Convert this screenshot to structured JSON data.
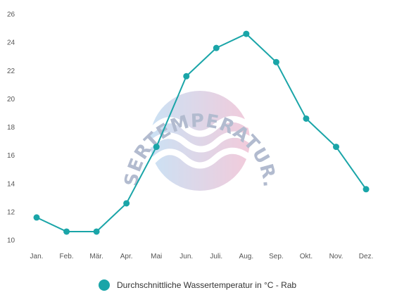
{
  "chart_data": {
    "type": "line",
    "categories": [
      "Jan.",
      "Feb.",
      "Mär.",
      "Apr.",
      "Mai",
      "Jun.",
      "Juli.",
      "Aug.",
      "Sep.",
      "Okt.",
      "Nov.",
      "Dez."
    ],
    "series": [
      {
        "name": "Durchschnittliche Wassertemperatur in °C - Rab",
        "values": [
          11.6,
          10.6,
          10.6,
          12.6,
          16.6,
          21.6,
          23.6,
          24.6,
          22.6,
          18.6,
          16.6,
          13.6
        ]
      }
    ],
    "y_ticks": [
      10,
      12,
      14,
      16,
      18,
      20,
      22,
      24,
      26
    ],
    "ylim": [
      10,
      26
    ],
    "title": "",
    "xlabel": "",
    "ylabel": "",
    "grid": false,
    "legend_position": "bottom",
    "colors": {
      "line": "#1aa5a8",
      "point": "#1aa5a8"
    }
  },
  "watermark": {
    "text": "WASSERTEMPERATUR.ORG"
  }
}
